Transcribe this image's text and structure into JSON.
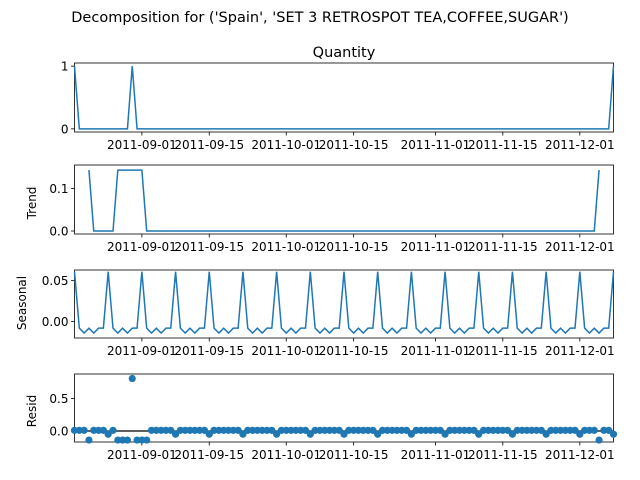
{
  "suptitle": "Decomposition for ('Spain', 'SET 3 RETROSPOT TEA,COFFEE,SUGAR')",
  "colors": {
    "line": "#1f77b4",
    "marker": "#1f77b4",
    "zero_line": "#000000",
    "axes": "#000000"
  },
  "x_ticks": [
    "2011-09-01",
    "2011-09-15",
    "2011-10-01",
    "2011-10-15",
    "2011-11-01",
    "2011-11-15",
    "2011-12-01"
  ],
  "chart_data": [
    {
      "type": "line",
      "title": "Quantity",
      "ylabel": "",
      "x_range": [
        "2011-08-18",
        "2011-12-08"
      ],
      "ylim": [
        -0.05,
        1.05
      ],
      "yticks": [
        {
          "value": 0,
          "label": "0"
        },
        {
          "value": 1,
          "label": "1"
        }
      ],
      "series": [
        {
          "points": [
            [
              "2011-08-18",
              1
            ],
            [
              "2011-08-19",
              0
            ],
            [
              "2011-08-29",
              0
            ],
            [
              "2011-08-30",
              1
            ],
            [
              "2011-08-31",
              0
            ],
            [
              "2011-12-07",
              0
            ],
            [
              "2011-12-08",
              1
            ]
          ]
        }
      ]
    },
    {
      "type": "line",
      "title": "",
      "ylabel": "Trend",
      "x_range": [
        "2011-08-18",
        "2011-12-08"
      ],
      "ylim": [
        -0.007,
        0.155
      ],
      "yticks": [
        {
          "value": 0,
          "label": "0.0"
        },
        {
          "value": 0.1,
          "label": "0.1"
        }
      ],
      "series": [
        {
          "points": [
            [
              "2011-08-21",
              0.143
            ],
            [
              "2011-08-22",
              0
            ],
            [
              "2011-08-26",
              0
            ],
            [
              "2011-08-27",
              0.143
            ],
            [
              "2011-09-01",
              0.143
            ],
            [
              "2011-09-02",
              0
            ],
            [
              "2011-12-04",
              0
            ],
            [
              "2011-12-05",
              0.143
            ]
          ]
        }
      ]
    },
    {
      "type": "line",
      "title": "",
      "ylabel": "Seasonal",
      "x_range": [
        "2011-08-18",
        "2011-12-08"
      ],
      "ylim": [
        -0.02,
        0.063
      ],
      "yticks": [
        {
          "value": 0,
          "label": "0.00"
        },
        {
          "value": 0.05,
          "label": "0.05"
        }
      ],
      "series": [
        {
          "start": "2011-08-18",
          "step_days": 1,
          "pattern": [
            0.061,
            -0.008,
            -0.014,
            -0.008,
            -0.014,
            -0.008,
            -0.008
          ],
          "values": []
        }
      ]
    },
    {
      "type": "scatter",
      "title": "",
      "ylabel": "Resid",
      "x_range": [
        "2011-08-18",
        "2011-12-08"
      ],
      "ylim": [
        -0.17,
        0.88
      ],
      "yticks": [
        {
          "value": 0,
          "label": "0.0"
        },
        {
          "value": 0.5,
          "label": "0.5"
        }
      ],
      "zero_line": true,
      "special_points": [
        [
          "2011-08-21",
          -0.14
        ],
        [
          "2011-08-30",
          0.81
        ],
        [
          "2011-08-27",
          -0.14
        ],
        [
          "2011-08-28",
          -0.14
        ],
        [
          "2011-08-29",
          -0.14
        ],
        [
          "2011-08-31",
          -0.14
        ],
        [
          "2011-09-01",
          -0.14
        ],
        [
          "2011-09-02",
          -0.14
        ],
        [
          "2011-12-05",
          -0.14
        ]
      ],
      "default_value": 0.01,
      "dip_every_7_value": -0.05
    }
  ]
}
